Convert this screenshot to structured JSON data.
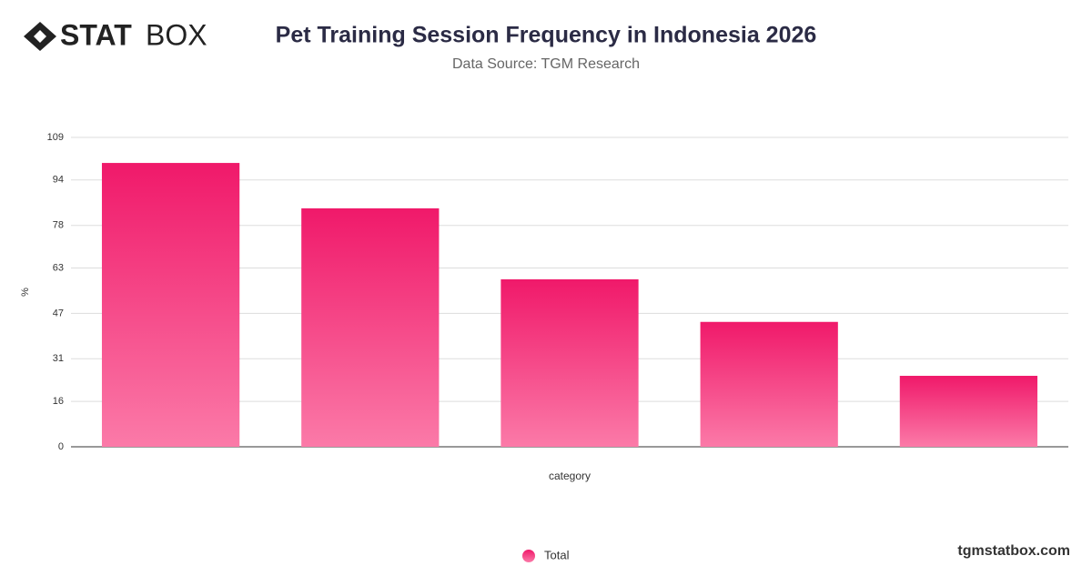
{
  "brand": {
    "bold": "STAT",
    "light": "BOX"
  },
  "footer": "tgmstatbox.com",
  "chart_data": {
    "type": "bar",
    "title": "Pet Training Session Frequency in Indonesia 2026",
    "subtitle": "Data Source: TGM Research",
    "y_label": "%",
    "x_label": "category",
    "categories": [
      null,
      null,
      null,
      null,
      null
    ],
    "series": [
      {
        "name": "Total",
        "color": "#f0196a",
        "values": [
          100,
          84,
          59,
          44,
          25
        ]
      }
    ],
    "ylim": [
      0,
      109
    ],
    "yticks": [
      0,
      16,
      31,
      47,
      63,
      78,
      94,
      109
    ],
    "grid": true
  }
}
